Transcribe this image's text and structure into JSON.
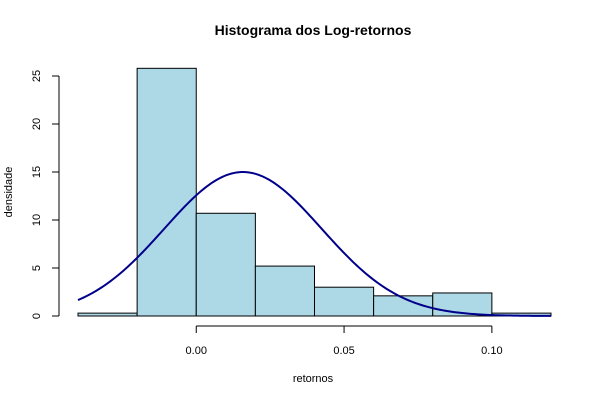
{
  "chart_data": {
    "type": "bar",
    "subtype": "histogram",
    "title": "Histograma dos Log-retornos",
    "xlabel": "retornos",
    "ylabel": "densidade",
    "xlim": [
      -0.04,
      0.12
    ],
    "ylim": [
      0,
      27
    ],
    "x_ticks": [
      0.0,
      0.05,
      0.1
    ],
    "x_tick_labels": [
      "0.00",
      "0.05",
      "0.10"
    ],
    "y_ticks": [
      0,
      5,
      10,
      15,
      20,
      25
    ],
    "y_tick_labels": [
      "0",
      "5",
      "10",
      "15",
      "20",
      "25"
    ],
    "bins": [
      {
        "start": -0.04,
        "end": -0.02,
        "density": 0.3
      },
      {
        "start": -0.02,
        "end": 0.0,
        "density": 25.8
      },
      {
        "start": 0.0,
        "end": 0.02,
        "density": 10.7
      },
      {
        "start": 0.02,
        "end": 0.04,
        "density": 5.2
      },
      {
        "start": 0.04,
        "end": 0.06,
        "density": 3.0
      },
      {
        "start": 0.06,
        "end": 0.08,
        "density": 2.1
      },
      {
        "start": 0.08,
        "end": 0.1,
        "density": 2.4
      },
      {
        "start": 0.1,
        "end": 0.12,
        "density": 0.3
      }
    ],
    "normal_curve": {
      "mean": 0.0158,
      "sd": 0.0266
    },
    "colors": {
      "bar_fill": "#add8e6",
      "bar_stroke": "#000000",
      "curve": "#00008b"
    },
    "grid": false,
    "legend": "none"
  }
}
